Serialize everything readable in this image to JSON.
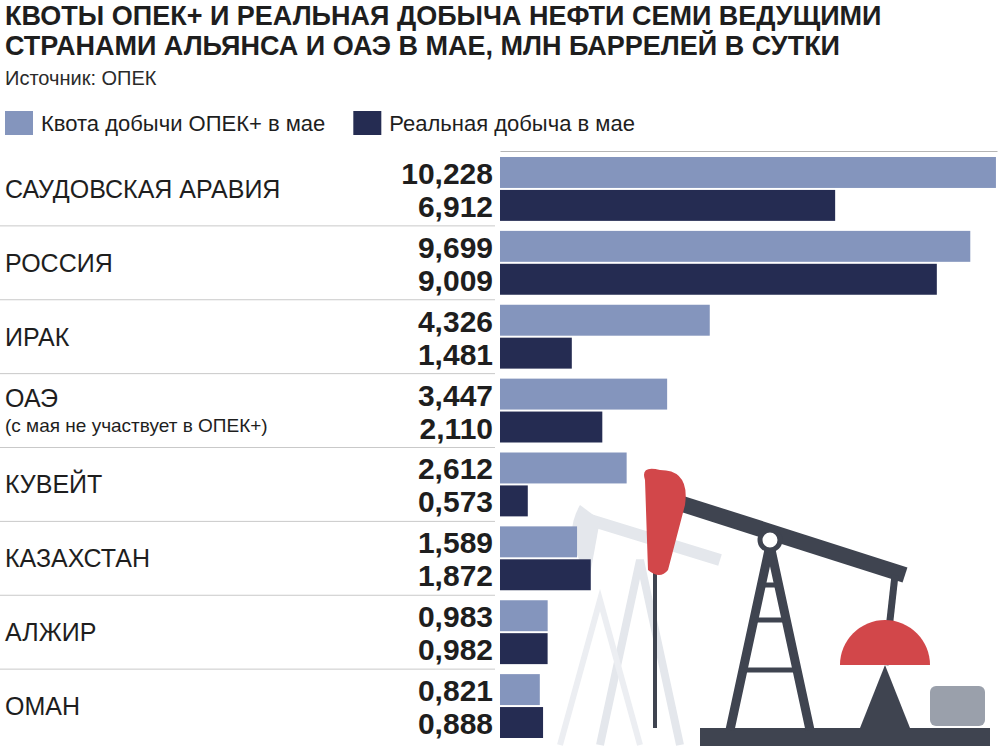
{
  "chart_data": {
    "type": "bar",
    "orientation": "horizontal",
    "title": "КВОТЫ ОПЕК+ И РЕАЛЬНАЯ ДОБЫЧА НЕФТИ СЕМИ ВЕДУЩИМИ СТРАНАМИ АЛЬЯНСА И ОАЭ В МАЕ, МЛН БАРРЕЛЕЙ В СУТКИ",
    "subtitle": "Источник: ОПЕК",
    "categories": [
      "САУДОВСКАЯ АРАВИЯ",
      "РОССИЯ",
      "ИРАК",
      "ОАЭ",
      "КУВЕЙТ",
      "КАЗАХСТАН",
      "АЛЖИР",
      "ОМАН"
    ],
    "annotations": [
      {
        "category": "ОАЭ",
        "text": "(с мая не участвует в ОПЕК+)"
      }
    ],
    "series": [
      {
        "name": "Квота добычи ОПЕК+ в мае",
        "color": "#8495bd",
        "values": [
          10.228,
          9.699,
          4.326,
          3.447,
          2.612,
          1.589,
          0.983,
          0.821
        ],
        "value_labels": [
          "10,228",
          "9,699",
          "4,326",
          "3,447",
          "2,612",
          "1,589",
          "0,983",
          "0,821"
        ]
      },
      {
        "name": "Реальная добыча в мае",
        "color": "#252c52",
        "values": [
          6.912,
          9.009,
          1.481,
          2.11,
          0.573,
          1.872,
          0.982,
          0.888
        ],
        "value_labels": [
          "6,912",
          "9,009",
          "1,481",
          "2,110",
          "0,573",
          "1,872",
          "0,982",
          "0,888"
        ]
      }
    ],
    "xlim": [
      0,
      10.25
    ],
    "xticks": [],
    "data_labels": true,
    "tick_labels": false,
    "legend": "top-left",
    "grid": false
  }
}
